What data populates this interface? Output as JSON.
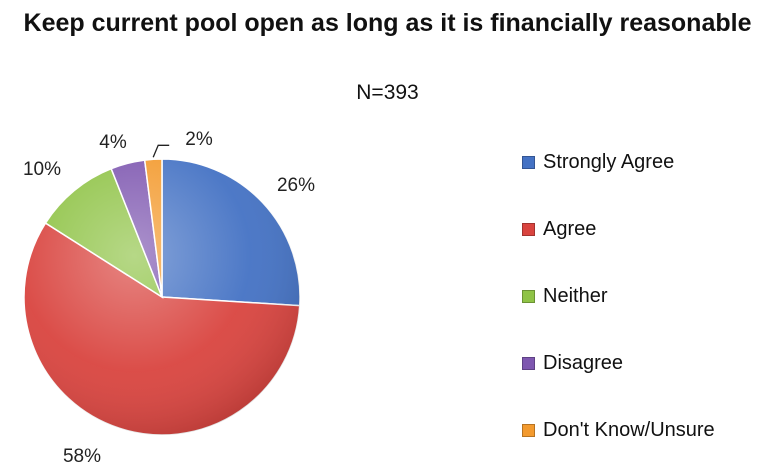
{
  "chart_data": {
    "type": "pie",
    "title": "Keep current pool open as long as it is financially reasonable",
    "subtitle": "N=393",
    "categories": [
      "Strongly Agree",
      "Agree",
      "Neither",
      "Disagree",
      "Don't Know/Unsure"
    ],
    "values": [
      26,
      58,
      10,
      4,
      2
    ],
    "labels": [
      "26%",
      "58%",
      "10%",
      "4%",
      "2%"
    ],
    "colors": [
      "#4472C4",
      "#D9443F",
      "#8FC346",
      "#7E57B0",
      "#F39A2E"
    ],
    "legend_position": "right"
  }
}
